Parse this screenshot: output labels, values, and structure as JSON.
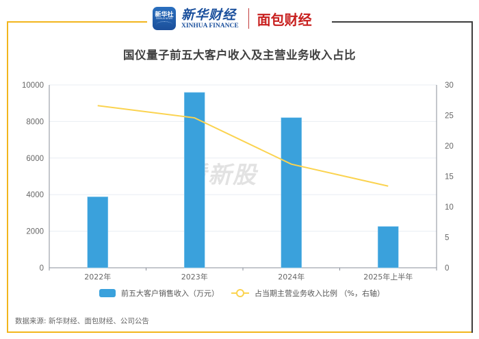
{
  "header": {
    "logo_xinhua_app_text": "新华社",
    "logo_xinhua_app_sub": "XINHUA NEWS",
    "logo_xinhua_finance_cn": "新华财经",
    "logo_xinhua_finance_en": "XINHUA FINANCE",
    "logo_mianbao": "面包财经"
  },
  "colors": {
    "bar": "#3aa1dc",
    "line": "#fbd34f",
    "frame_gold": "#f2b51c",
    "frame_dark": "#3c3c3c",
    "grid": "#e8edf3"
  },
  "watermark": "看新股",
  "source": "数据来源: 新华财经、面包财经、公司公告",
  "chart_data": {
    "type": "bar",
    "title": "国仪量子前五大客户收入及主营业务收入占比",
    "categories": [
      "2022年",
      "2023年",
      "2024年",
      "2025年上半年"
    ],
    "series": [
      {
        "name": "前五大客户销售收入（万元）",
        "type": "bar",
        "axis": "left",
        "values": [
          3880,
          9590,
          8210,
          2260
        ]
      },
      {
        "name": "占当期主营业务收入比例 （%，右轴）",
        "type": "line",
        "axis": "right",
        "values": [
          26.6,
          24.6,
          17.0,
          13.4
        ]
      }
    ],
    "xlabel": "",
    "ylabel": "",
    "ylim": [
      0,
      10000
    ],
    "y_ticks": [
      "0",
      "2000",
      "4000",
      "6000",
      "8000",
      "10000"
    ],
    "y2lim": [
      0,
      30
    ],
    "y2_ticks": [
      "0",
      "5",
      "10",
      "15",
      "20",
      "25",
      "30"
    ],
    "grid": true,
    "legend_position": "bottom"
  }
}
